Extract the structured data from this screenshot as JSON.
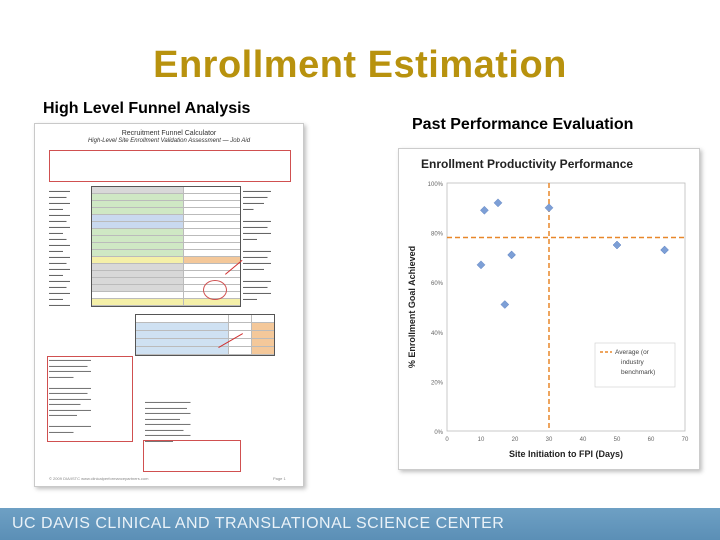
{
  "slide": {
    "title": "Enrollment Estimation",
    "left_heading": "High Level Funnel Analysis",
    "right_heading": "Past Performance Evaluation",
    "footer": "UC DAVIS CLINICAL AND TRANSLATIONAL SCIENCE CENTER"
  },
  "document": {
    "title": "Recruitment Funnel Calculator",
    "subtitle": "High-Level Site Enrollment Validation Assessment — Job Aid",
    "footer_note": "© 2009 DIA/ISTC  www.clinicalperformancepartners.com",
    "page": "Page 1"
  },
  "chart_data": {
    "type": "scatter",
    "title": "Enrollment Productivity Performance",
    "xlabel": "Site Initiation to FPI (Days)",
    "ylabel": "% Enrollment Goal Achieved",
    "xlim": [
      0,
      70
    ],
    "ylim": [
      0,
      100
    ],
    "x_ticks": [
      0,
      10,
      20,
      30,
      40,
      50,
      60,
      70
    ],
    "y_ticks": [
      "0%",
      "20%",
      "40%",
      "60%",
      "80%",
      "100%"
    ],
    "points": [
      {
        "x": 11,
        "y": 89
      },
      {
        "x": 15,
        "y": 92
      },
      {
        "x": 19,
        "y": 71
      },
      {
        "x": 30,
        "y": 90
      },
      {
        "x": 10,
        "y": 67
      },
      {
        "x": 17,
        "y": 51
      },
      {
        "x": 50,
        "y": 75
      },
      {
        "x": 64,
        "y": 73
      }
    ],
    "avg_x": 30,
    "avg_y": 78,
    "legend": "Average (or industry benchmark)",
    "colors": {
      "points": "#7d9fd6",
      "average": "#e8872a"
    }
  }
}
